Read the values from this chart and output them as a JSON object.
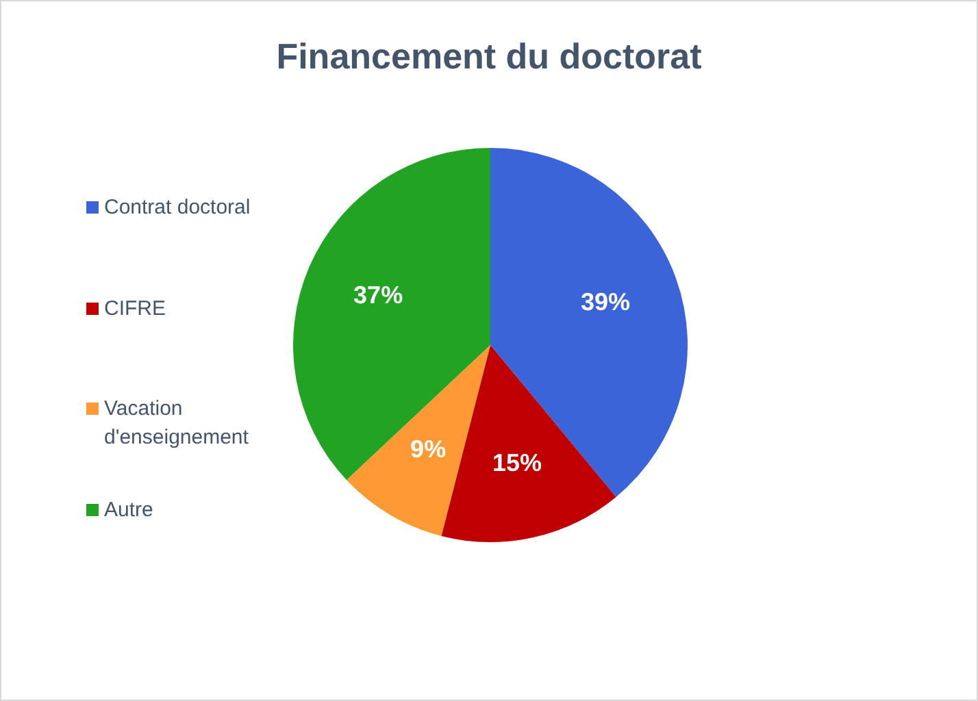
{
  "chart_data": {
    "type": "pie",
    "title": "Financement du doctorat",
    "categories": [
      "Contrat doctoral",
      "CIFRE",
      "Vacation d'enseignement",
      "Autre"
    ],
    "values": [
      39,
      15,
      9,
      37
    ],
    "colors": [
      "#3b64d8",
      "#c00000",
      "#ff9933",
      "#22a324"
    ],
    "value_labels": [
      "39%",
      "15%",
      "9%",
      "37%"
    ],
    "legend": "left"
  }
}
